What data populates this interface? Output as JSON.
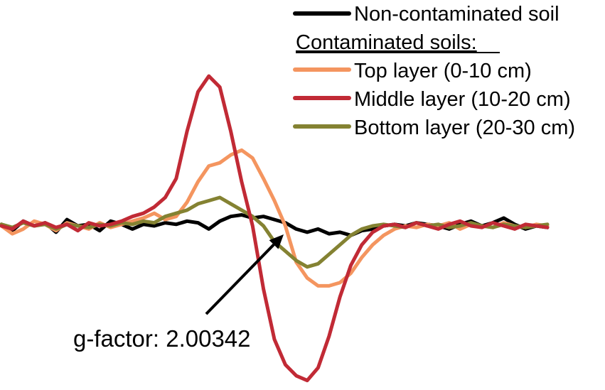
{
  "chart_data": {
    "type": "line",
    "title": "",
    "xlabel": "",
    "ylabel": "",
    "axes_visible": false,
    "grid": false,
    "legend_placement": "top-right",
    "legend_heading": "Contaminated soils:",
    "xlim": [
      0,
      100
    ],
    "ylim": [
      -100,
      100
    ],
    "annotation": {
      "text": "g-factor: 2.00342",
      "points_to_x": 53,
      "points_to_y": 0
    },
    "series": [
      {
        "name": "Non-contaminated soil",
        "color": "#000000",
        "x": [
          0,
          2,
          4,
          6,
          8,
          10,
          12,
          14,
          16,
          18,
          20,
          22,
          24,
          26,
          28,
          30,
          32,
          34,
          36,
          38,
          40,
          42,
          44,
          46,
          48,
          50,
          52,
          54,
          56,
          58,
          60,
          62,
          64,
          66,
          68,
          70,
          72,
          74,
          76,
          78,
          80,
          82,
          84,
          86,
          88,
          90,
          92,
          94,
          96,
          98,
          100
        ],
        "y": [
          1,
          -3,
          3,
          0,
          2,
          -4,
          4,
          0,
          1,
          -3,
          3,
          1,
          -2,
          1,
          0,
          2,
          1,
          3,
          2,
          -2,
          3,
          6,
          7,
          5,
          6,
          4,
          2,
          -2,
          -4,
          -2,
          -5,
          -4,
          -6,
          -3,
          -2,
          0,
          1,
          0,
          2,
          1,
          0,
          -2,
          1,
          3,
          0,
          2,
          5,
          1,
          -2,
          0,
          -1
        ]
      },
      {
        "name": "Top layer (0-10 cm)",
        "color": "#f4955f",
        "x": [
          0,
          2,
          4,
          6,
          8,
          10,
          12,
          14,
          16,
          18,
          20,
          22,
          24,
          26,
          28,
          30,
          32,
          34,
          36,
          38,
          40,
          42,
          44,
          46,
          48,
          50,
          52,
          54,
          56,
          58,
          60,
          62,
          64,
          66,
          68,
          70,
          72,
          74,
          76,
          78,
          80,
          82,
          84,
          86,
          88,
          90,
          92,
          94,
          96,
          98,
          100
        ],
        "y": [
          0,
          -5,
          -2,
          3,
          1,
          -3,
          2,
          0,
          -2,
          2,
          -1,
          1,
          3,
          5,
          8,
          4,
          6,
          15,
          28,
          38,
          40,
          45,
          48,
          43,
          30,
          16,
          0,
          -23,
          -33,
          -38,
          -38,
          -36,
          -30,
          -20,
          -12,
          -6,
          -2,
          0,
          -1,
          1,
          0,
          2,
          -2,
          1,
          0,
          -1,
          2,
          0,
          -1,
          1,
          0
        ]
      },
      {
        "name": "Middle layer (10-20 cm)",
        "color": "#c12a35",
        "x": [
          0,
          2,
          4,
          6,
          8,
          10,
          12,
          14,
          16,
          18,
          20,
          22,
          24,
          26,
          28,
          30,
          32,
          34,
          36,
          38,
          40,
          42,
          44,
          46,
          48,
          50,
          52,
          54,
          56,
          58,
          60,
          62,
          64,
          66,
          68,
          70,
          72,
          74,
          76,
          78,
          80,
          82,
          84,
          86,
          88,
          90,
          92,
          94,
          96,
          98,
          100
        ],
        "y": [
          0,
          -2,
          3,
          0,
          2,
          -1,
          1,
          -3,
          2,
          0,
          1,
          3,
          6,
          8,
          12,
          18,
          30,
          60,
          85,
          95,
          88,
          60,
          28,
          0,
          -40,
          -72,
          -88,
          -95,
          -98,
          -90,
          -70,
          -45,
          -25,
          -12,
          -4,
          0,
          1,
          -1,
          2,
          0,
          -2,
          1,
          3,
          0,
          -1,
          2,
          0,
          -2,
          1,
          0,
          -1
        ]
      },
      {
        "name": "Bottom layer (20-30 cm)",
        "color": "#848232",
        "x": [
          0,
          2,
          4,
          6,
          8,
          10,
          12,
          14,
          16,
          18,
          20,
          22,
          24,
          26,
          28,
          30,
          32,
          34,
          36,
          38,
          40,
          42,
          44,
          46,
          48,
          50,
          52,
          54,
          56,
          58,
          60,
          62,
          64,
          66,
          68,
          70,
          72,
          74,
          76,
          78,
          80,
          82,
          84,
          86,
          88,
          90,
          92,
          94,
          96,
          98,
          100
        ],
        "y": [
          1,
          -1,
          2,
          0,
          1,
          -2,
          1,
          0,
          -1,
          1,
          0,
          2,
          1,
          3,
          2,
          6,
          8,
          10,
          14,
          16,
          18,
          14,
          10,
          6,
          0,
          -10,
          -16,
          -22,
          -26,
          -24,
          -18,
          -12,
          -6,
          -2,
          0,
          1,
          0,
          -1,
          2,
          0,
          1,
          -1,
          0,
          2,
          0,
          -1,
          1,
          0,
          -1,
          0,
          1
        ]
      }
    ]
  }
}
